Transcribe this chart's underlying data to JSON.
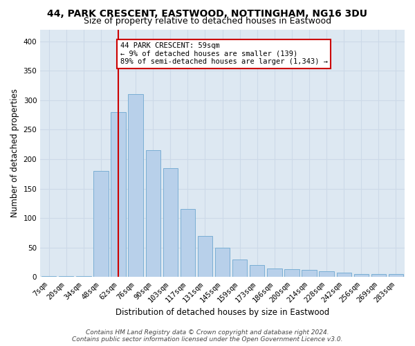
{
  "title1": "44, PARK CRESCENT, EASTWOOD, NOTTINGHAM, NG16 3DU",
  "title2": "Size of property relative to detached houses in Eastwood",
  "xlabel": "Distribution of detached houses by size in Eastwood",
  "ylabel": "Number of detached properties",
  "categories": [
    "7sqm",
    "20sqm",
    "34sqm",
    "48sqm",
    "62sqm",
    "76sqm",
    "90sqm",
    "103sqm",
    "117sqm",
    "131sqm",
    "145sqm",
    "159sqm",
    "173sqm",
    "186sqm",
    "200sqm",
    "214sqm",
    "228sqm",
    "242sqm",
    "256sqm",
    "269sqm",
    "283sqm"
  ],
  "values": [
    2,
    2,
    2,
    180,
    280,
    310,
    215,
    185,
    115,
    70,
    50,
    30,
    20,
    15,
    13,
    12,
    10,
    8,
    5,
    5,
    5
  ],
  "bar_color": "#b8d0ea",
  "bar_edge_color": "#7aaed4",
  "marker_bin_index": 4,
  "marker_line_color": "#cc0000",
  "annotation_text": "44 PARK CRESCENT: 59sqm\n← 9% of detached houses are smaller (139)\n89% of semi-detached houses are larger (1,343) →",
  "annotation_box_color": "#ffffff",
  "annotation_box_edge": "#cc0000",
  "ylim": [
    0,
    420
  ],
  "yticks": [
    0,
    50,
    100,
    150,
    200,
    250,
    300,
    350,
    400
  ],
  "grid_color": "#ccd9e8",
  "bg_color": "#dde8f2",
  "footer1": "Contains HM Land Registry data © Crown copyright and database right 2024.",
  "footer2": "Contains public sector information licensed under the Open Government Licence v3.0.",
  "title1_fontsize": 10,
  "title2_fontsize": 9,
  "axis_label_fontsize": 8.5,
  "tick_fontsize": 7.5,
  "footer_fontsize": 6.5,
  "annotation_fontsize": 7.5
}
